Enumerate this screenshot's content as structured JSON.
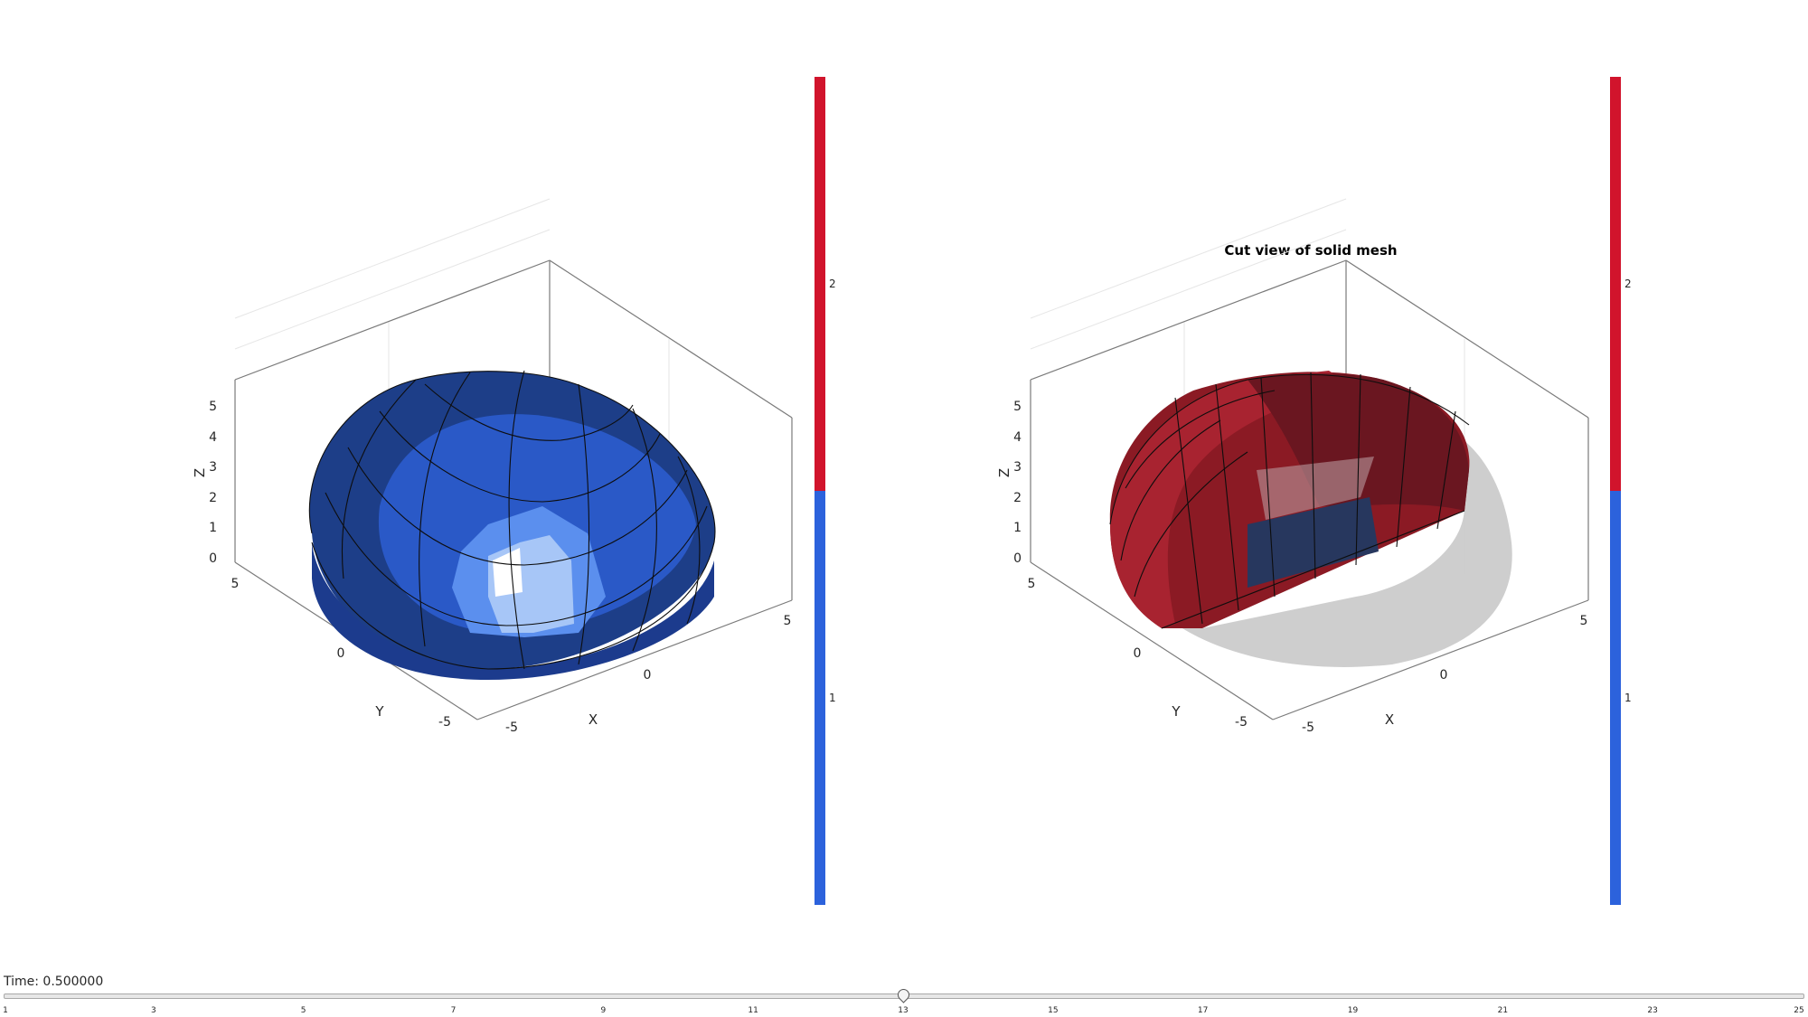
{
  "left_plot": {
    "title": "",
    "xlabel": "X",
    "ylabel": "Y",
    "zlabel": "Z",
    "z_ticks": [
      "0",
      "1",
      "2",
      "3",
      "4",
      "5"
    ],
    "x_ticks": [
      "-5",
      "0",
      "5"
    ],
    "y_ticks": [
      "-5",
      "0",
      "5"
    ],
    "colorbar": {
      "ticks": [
        "1",
        "2"
      ],
      "colors": [
        "#2c62dc",
        "#d1142c"
      ]
    }
  },
  "right_plot": {
    "title": "Cut view of solid mesh",
    "xlabel": "X",
    "ylabel": "Y",
    "zlabel": "Z",
    "z_ticks": [
      "0",
      "1",
      "2",
      "3",
      "4",
      "5"
    ],
    "x_ticks": [
      "-5",
      "0",
      "5"
    ],
    "y_ticks": [
      "-5",
      "0",
      "5"
    ],
    "colorbar": {
      "ticks": [
        "1",
        "2"
      ],
      "colors": [
        "#2c62dc",
        "#d1142c"
      ]
    }
  },
  "time_control": {
    "label": "Time: 0.500000",
    "slider_ticks": [
      "1",
      "3",
      "5",
      "7",
      "9",
      "11",
      "13",
      "15",
      "17",
      "19",
      "21",
      "23",
      "25"
    ],
    "current_step": 13
  }
}
